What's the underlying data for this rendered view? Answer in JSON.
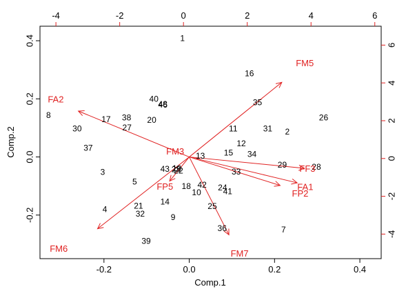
{
  "chart_data": {
    "type": "scatter",
    "subtype": "biplot",
    "xlabel": "Comp.1",
    "ylabel": "Comp.2",
    "xlim": [
      -0.35,
      0.45
    ],
    "ylim": [
      -0.35,
      0.45
    ],
    "xticks": [
      "-0.2",
      "0.0",
      "0.2",
      "0.4"
    ],
    "yticks": [
      "-0.2",
      "0.0",
      "0.2",
      "0.4"
    ],
    "top_axis": {
      "lim": [
        -4.5,
        6.2
      ],
      "ticks": [
        "-4",
        "-2",
        "0",
        "2",
        "4",
        "6"
      ],
      "color": "#e02020"
    },
    "right_axis": {
      "lim": [
        -5.3,
        7.0
      ],
      "ticks": [
        "-4",
        "-2",
        "0",
        "2",
        "4",
        "6"
      ],
      "color": "#e02020"
    },
    "arrow_color": "#e02020",
    "point_color": "#000000",
    "observations": [
      {
        "label": "1",
        "x": -0.016,
        "y": 0.406
      },
      {
        "label": "2",
        "x": 0.23,
        "y": 0.085
      },
      {
        "label": "3",
        "x": -0.203,
        "y": -0.054
      },
      {
        "label": "4",
        "x": -0.198,
        "y": -0.182
      },
      {
        "label": "5",
        "x": -0.128,
        "y": -0.087
      },
      {
        "label": "7",
        "x": 0.221,
        "y": -0.252
      },
      {
        "label": "8",
        "x": -0.33,
        "y": 0.142
      },
      {
        "label": "9",
        "x": -0.038,
        "y": -0.21
      },
      {
        "label": "10",
        "x": 0.017,
        "y": -0.124
      },
      {
        "label": "11",
        "x": 0.103,
        "y": 0.095
      },
      {
        "label": "12",
        "x": 0.122,
        "y": 0.045
      },
      {
        "label": "13",
        "x": 0.026,
        "y": 0.002
      },
      {
        "label": "14",
        "x": -0.057,
        "y": -0.156
      },
      {
        "label": "15",
        "x": 0.092,
        "y": 0.012
      },
      {
        "label": "16",
        "x": 0.141,
        "y": 0.286
      },
      {
        "label": "17",
        "x": -0.195,
        "y": 0.128
      },
      {
        "label": "18",
        "x": -0.007,
        "y": -0.103
      },
      {
        "label": "20",
        "x": -0.088,
        "y": 0.125
      },
      {
        "label": "21",
        "x": -0.119,
        "y": -0.17
      },
      {
        "label": "24",
        "x": 0.078,
        "y": -0.107
      },
      {
        "label": "25",
        "x": 0.054,
        "y": -0.171
      },
      {
        "label": "26",
        "x": 0.315,
        "y": 0.134
      },
      {
        "label": "27",
        "x": -0.146,
        "y": 0.099
      },
      {
        "label": "28",
        "x": 0.298,
        "y": -0.036
      },
      {
        "label": "29",
        "x": 0.218,
        "y": -0.029
      },
      {
        "label": "31",
        "x": 0.184,
        "y": 0.096
      },
      {
        "label": "32",
        "x": -0.115,
        "y": -0.198
      },
      {
        "label": "33",
        "x": 0.11,
        "y": -0.053
      },
      {
        "label": "34",
        "x": 0.147,
        "y": 0.008
      },
      {
        "label": "35",
        "x": 0.16,
        "y": 0.186
      },
      {
        "label": "36",
        "x": 0.077,
        "y": -0.248
      },
      {
        "label": "37",
        "x": -0.237,
        "y": 0.029
      },
      {
        "label": "38",
        "x": -0.147,
        "y": 0.133
      },
      {
        "label": "39",
        "x": -0.101,
        "y": -0.292
      },
      {
        "label": "40",
        "x": -0.083,
        "y": 0.197
      },
      {
        "label": "41",
        "x": 0.09,
        "y": -0.121
      },
      {
        "label": "42",
        "x": 0.03,
        "y": -0.098
      },
      {
        "label": "43",
        "x": -0.057,
        "y": -0.043
      },
      {
        "label": "46",
        "x": -0.062,
        "y": 0.178
      },
      {
        "label": "48",
        "x": -0.062,
        "y": 0.18
      },
      {
        "label": "19",
        "x": -0.029,
        "y": -0.041
      },
      {
        "label": "22",
        "x": -0.025,
        "y": -0.049
      },
      {
        "label": "23",
        "x": -0.031,
        "y": -0.045
      },
      {
        "label": "30",
        "x": -0.263,
        "y": 0.095
      }
    ],
    "variables": [
      {
        "label": "FM5",
        "x": 0.217,
        "y": 0.257,
        "label_x": 0.271,
        "label_y": 0.32
      },
      {
        "label": "FA2",
        "x": -0.26,
        "y": 0.158,
        "label_x": -0.313,
        "label_y": 0.196
      },
      {
        "label": "FM3",
        "x": 0.0,
        "y": 0.0,
        "label_x": -0.033,
        "label_y": 0.017
      },
      {
        "label": "FF3",
        "x": 0.27,
        "y": -0.039,
        "label_x": 0.277,
        "label_y": -0.043
      },
      {
        "label": "FA1",
        "x": 0.253,
        "y": -0.089,
        "label_x": 0.272,
        "label_y": -0.106
      },
      {
        "label": "FP2",
        "x": 0.213,
        "y": -0.098,
        "label_x": 0.26,
        "label_y": -0.128
      },
      {
        "label": "FP5",
        "x": -0.046,
        "y": -0.083,
        "label_x": -0.057,
        "label_y": -0.104
      },
      {
        "label": "FM6",
        "x": -0.215,
        "y": -0.247,
        "label_x": -0.306,
        "label_y": -0.318
      },
      {
        "label": "FM7",
        "x": 0.093,
        "y": -0.268,
        "label_x": 0.118,
        "label_y": -0.335
      }
    ]
  }
}
